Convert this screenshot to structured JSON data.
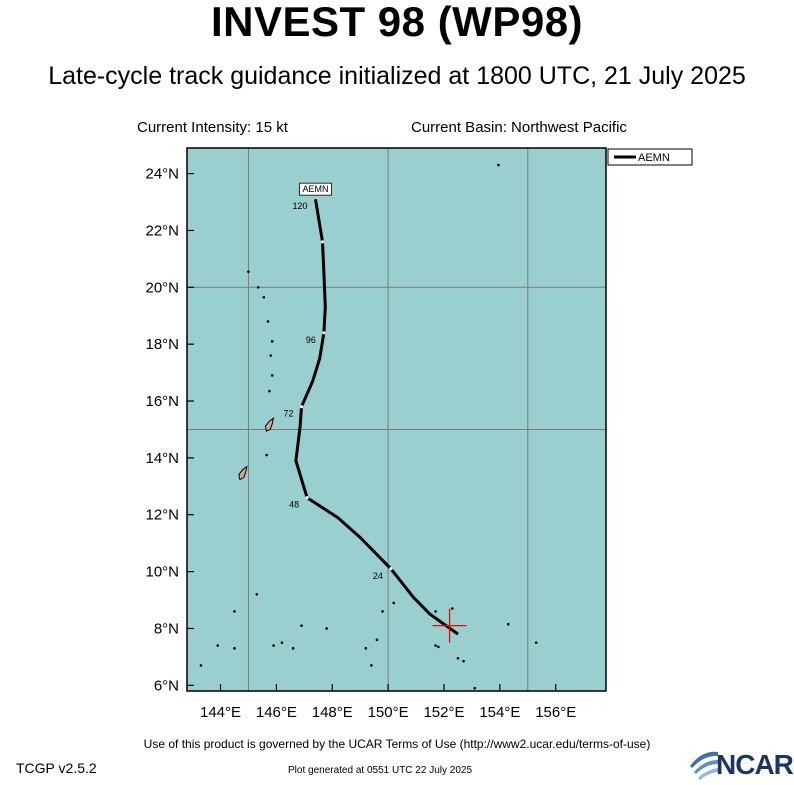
{
  "header": {
    "title": "INVEST 98 (WP98)",
    "subtitle": "Late-cycle track guidance initialized at 1800 UTC, 21 July 2025",
    "intensity": "Current Intensity: 15 kt",
    "basin": "Current Basin: Northwest Pacific"
  },
  "footer": {
    "terms": "Use of this product is governed by the UCAR Terms of Use (http://www2.ucar.edu/terms-of-use)",
    "version": "TCGP v2.5.2",
    "plot_generated": "Plot generated at 0551 UTC   22 July 2025",
    "logo_text": "NCAR"
  },
  "colors": {
    "ocean": "#99cfcf",
    "land": "#d9a680",
    "grid": "#7a7a7a",
    "track": "#000000",
    "current_marker": "#ff0000"
  },
  "chart_data": {
    "type": "line",
    "map_extent": {
      "lon": [
        142.8,
        157.8
      ],
      "lat": [
        5.8,
        24.9
      ]
    },
    "grid": true,
    "grid_lon": [
      145,
      150,
      155
    ],
    "grid_lat": [
      15,
      20
    ],
    "x_ticks": [
      144,
      146,
      148,
      150,
      152,
      154,
      156
    ],
    "x_tick_labels": [
      "144°E",
      "146°E",
      "148°E",
      "150°E",
      "152°E",
      "154°E",
      "156°E"
    ],
    "y_ticks": [
      6,
      8,
      10,
      12,
      14,
      16,
      18,
      20,
      22,
      24
    ],
    "y_tick_labels": [
      "6°N",
      "8°N",
      "10°N",
      "12°N",
      "14°N",
      "16°N",
      "18°N",
      "20°N",
      "22°N",
      "24°N"
    ],
    "legend": {
      "position": "top-right",
      "entries": [
        "AEMN"
      ]
    },
    "current_position": {
      "lon": 152.2,
      "lat": 8.1
    },
    "series": [
      {
        "name": "AEMN",
        "points": [
          {
            "lon": 152.5,
            "lat": 7.8,
            "hour": 0
          },
          {
            "lon": 151.5,
            "lat": 8.5
          },
          {
            "lon": 150.9,
            "lat": 9.1
          },
          {
            "lon": 150.1,
            "lat": 10.1,
            "hour": 24
          },
          {
            "lon": 149.0,
            "lat": 11.2
          },
          {
            "lon": 148.2,
            "lat": 11.9
          },
          {
            "lon": 147.1,
            "lat": 12.6,
            "hour": 48
          },
          {
            "lon": 146.7,
            "lat": 13.9
          },
          {
            "lon": 146.85,
            "lat": 15.1
          },
          {
            "lon": 146.9,
            "lat": 15.8,
            "hour": 72
          },
          {
            "lon": 147.3,
            "lat": 16.7
          },
          {
            "lon": 147.55,
            "lat": 17.5
          },
          {
            "lon": 147.7,
            "lat": 18.4,
            "hour": 96
          },
          {
            "lon": 147.75,
            "lat": 19.3
          },
          {
            "lon": 147.7,
            "lat": 20.5
          },
          {
            "lon": 147.65,
            "lat": 21.6
          },
          {
            "lon": 147.4,
            "lat": 23.1,
            "hour": 120
          }
        ],
        "hour_labels": [
          "24",
          "48",
          "72",
          "96",
          "120"
        ],
        "end_label": "AEMN"
      }
    ]
  },
  "islands": [
    {
      "lon": 144.8,
      "lat": 13.45,
      "kind": "land"
    },
    {
      "lon": 145.75,
      "lat": 15.15,
      "kind": "land"
    },
    {
      "lon": 145.65,
      "lat": 14.1,
      "kind": "dot"
    },
    {
      "lon": 145.75,
      "lat": 16.35,
      "kind": "dot"
    },
    {
      "lon": 145.85,
      "lat": 16.9,
      "kind": "dot"
    },
    {
      "lon": 145.8,
      "lat": 17.6,
      "kind": "dot"
    },
    {
      "lon": 145.85,
      "lat": 18.1,
      "kind": "dot"
    },
    {
      "lon": 145.7,
      "lat": 18.8,
      "kind": "dot"
    },
    {
      "lon": 145.55,
      "lat": 19.65,
      "kind": "dot"
    },
    {
      "lon": 145.35,
      "lat": 20.0,
      "kind": "dot"
    },
    {
      "lon": 145.0,
      "lat": 20.55,
      "kind": "dot"
    },
    {
      "lon": 153.95,
      "lat": 24.3,
      "kind": "dot"
    },
    {
      "lon": 144.5,
      "lat": 8.6,
      "kind": "dot"
    },
    {
      "lon": 145.3,
      "lat": 9.2,
      "kind": "dot"
    },
    {
      "lon": 143.9,
      "lat": 7.4,
      "kind": "dot"
    },
    {
      "lon": 144.5,
      "lat": 7.3,
      "kind": "dot"
    },
    {
      "lon": 143.3,
      "lat": 6.7,
      "kind": "dot"
    },
    {
      "lon": 145.9,
      "lat": 7.4,
      "kind": "dot"
    },
    {
      "lon": 146.2,
      "lat": 7.5,
      "kind": "dot"
    },
    {
      "lon": 146.6,
      "lat": 7.3,
      "kind": "dot"
    },
    {
      "lon": 146.9,
      "lat": 8.1,
      "kind": "dot"
    },
    {
      "lon": 147.8,
      "lat": 8.0,
      "kind": "dot"
    },
    {
      "lon": 149.2,
      "lat": 7.3,
      "kind": "dot"
    },
    {
      "lon": 149.4,
      "lat": 6.7,
      "kind": "dot"
    },
    {
      "lon": 149.6,
      "lat": 7.6,
      "kind": "dot"
    },
    {
      "lon": 149.8,
      "lat": 8.6,
      "kind": "dot"
    },
    {
      "lon": 150.2,
      "lat": 8.9,
      "kind": "dot"
    },
    {
      "lon": 151.7,
      "lat": 8.6,
      "kind": "dot"
    },
    {
      "lon": 151.7,
      "lat": 7.4,
      "kind": "dot"
    },
    {
      "lon": 151.8,
      "lat": 7.35,
      "kind": "dot"
    },
    {
      "lon": 152.3,
      "lat": 8.7,
      "kind": "dot"
    },
    {
      "lon": 152.5,
      "lat": 6.95,
      "kind": "dot"
    },
    {
      "lon": 152.7,
      "lat": 6.85,
      "kind": "dot"
    },
    {
      "lon": 153.1,
      "lat": 5.9,
      "kind": "dot"
    },
    {
      "lon": 154.3,
      "lat": 8.15,
      "kind": "dot"
    },
    {
      "lon": 155.3,
      "lat": 7.5,
      "kind": "dot"
    }
  ]
}
